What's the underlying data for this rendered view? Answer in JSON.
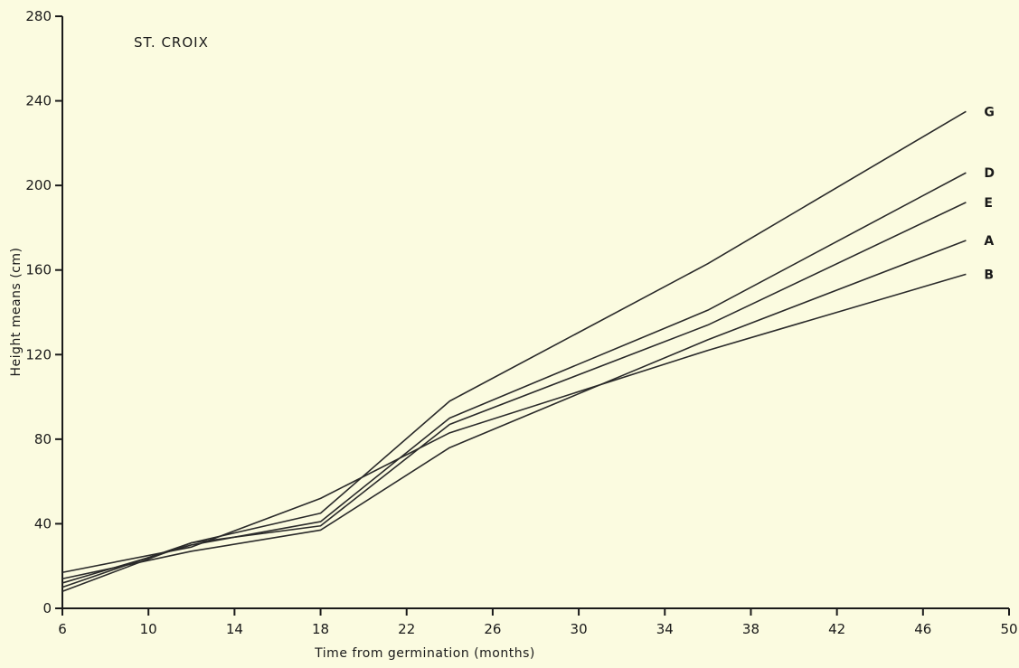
{
  "chart_data": {
    "type": "line",
    "title": "ST. CROIX",
    "xlabel": "Time from germination (months)",
    "ylabel": "Height means (cm)",
    "xlim": [
      6,
      50
    ],
    "ylim": [
      0,
      280
    ],
    "xticks": [
      6,
      10,
      14,
      18,
      22,
      26,
      30,
      34,
      38,
      42,
      46,
      50
    ],
    "yticks": [
      0,
      40,
      80,
      120,
      160,
      200,
      240,
      280
    ],
    "grid": false,
    "series": [
      {
        "name": "G",
        "x": [
          6,
          12,
          18,
          24,
          36,
          48
        ],
        "y": [
          10,
          31,
          45,
          98,
          163,
          235
        ]
      },
      {
        "name": "D",
        "x": [
          6,
          12,
          18,
          24,
          36,
          48
        ],
        "y": [
          12,
          30,
          41,
          90,
          141,
          206
        ]
      },
      {
        "name": "E",
        "x": [
          6,
          12,
          18,
          24,
          36,
          48
        ],
        "y": [
          8,
          31,
          39,
          87,
          134,
          192
        ]
      },
      {
        "name": "A",
        "x": [
          6,
          12,
          18,
          24,
          36,
          48
        ],
        "y": [
          14,
          27,
          37,
          76,
          127,
          174
        ]
      },
      {
        "name": "B",
        "x": [
          6,
          12,
          18,
          24,
          36,
          48
        ],
        "y": [
          17,
          29,
          52,
          83,
          122,
          158
        ]
      }
    ]
  }
}
